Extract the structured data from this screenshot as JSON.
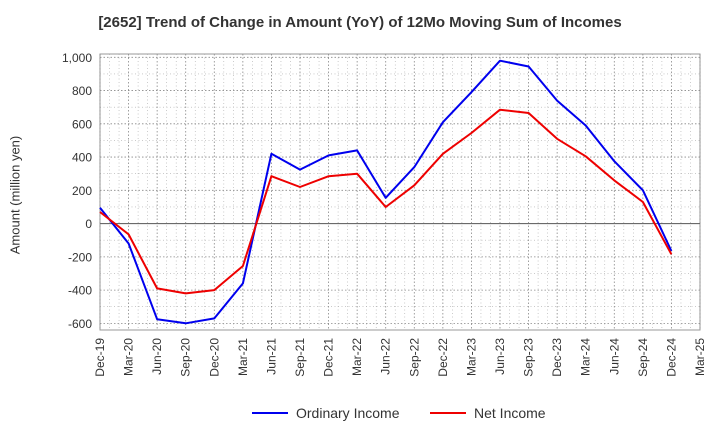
{
  "chart_data": {
    "type": "line",
    "title": "[2652]  Trend of Change in Amount (YoY) of 12Mo Moving Sum of Incomes",
    "ylabel": "Amount (million yen)",
    "xlabel": "",
    "ylim": [
      -640,
      1020
    ],
    "y_ticks": [
      1000,
      800,
      600,
      400,
      200,
      0,
      -200,
      -400,
      -600
    ],
    "y_tick_labels": [
      "1,000",
      "800",
      "600",
      "400",
      "200",
      "0",
      "-200",
      "-400",
      "-600"
    ],
    "grid": true,
    "legend_position": "bottom-center",
    "x_labels": [
      "Dec-19",
      "Mar-20",
      "Jun-20",
      "Sep-20",
      "Dec-20",
      "Mar-21",
      "Jun-21",
      "Sep-21",
      "Dec-21",
      "Mar-22",
      "Jun-22",
      "Sep-22",
      "Dec-22",
      "Mar-23",
      "Jun-23",
      "Sep-23",
      "Dec-23",
      "Mar-24",
      "Jun-24",
      "Sep-24",
      "Dec-24",
      "Mar-25"
    ],
    "series": [
      {
        "name": "Ordinary Income",
        "color": "#0000ee",
        "values": [
          95,
          -120,
          -575,
          -600,
          -570,
          -360,
          420,
          325,
          410,
          440,
          155,
          340,
          610,
          790,
          980,
          945,
          740,
          590,
          375,
          200,
          -165,
          null
        ]
      },
      {
        "name": "Net Income",
        "color": "#ee0000",
        "values": [
          70,
          -65,
          -390,
          -420,
          -400,
          -255,
          285,
          220,
          285,
          300,
          100,
          230,
          420,
          545,
          685,
          665,
          510,
          405,
          260,
          130,
          -185,
          null
        ]
      }
    ]
  }
}
